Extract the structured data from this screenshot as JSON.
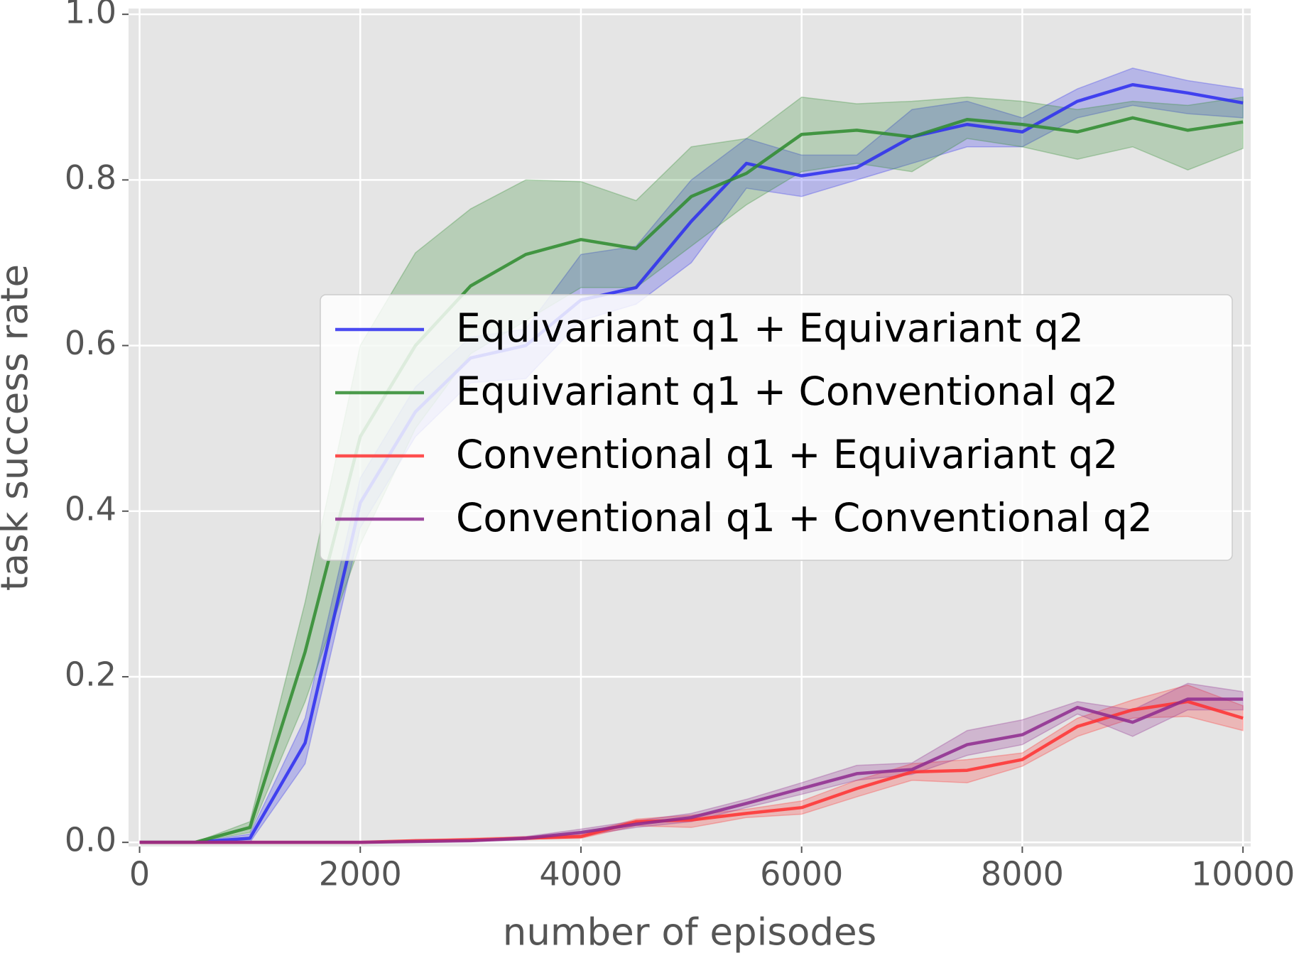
{
  "chart_data": {
    "type": "line",
    "xlabel": "number of episodes",
    "ylabel": "task success rate",
    "x": [
      0,
      500,
      1000,
      1500,
      2000,
      2500,
      3000,
      3500,
      4000,
      4500,
      5000,
      5500,
      6000,
      6500,
      7000,
      7500,
      8000,
      8500,
      9000,
      9500,
      10000
    ],
    "xlim": [
      -100,
      10070
    ],
    "ylim": [
      -0.005,
      1.007
    ],
    "xticks": [
      0,
      2000,
      4000,
      6000,
      8000,
      10000
    ],
    "yticks": [
      {
        "value": 0,
        "label": "0.0"
      },
      0.2,
      0.4,
      0.6,
      0.8,
      {
        "value": 1,
        "label": "1.0"
      }
    ],
    "grid": true,
    "legend": "center right",
    "series": [
      {
        "name": "Equivariant q1 + Equivariant q2",
        "color": "#2b2bf0",
        "values": [
          0,
          0,
          0.005,
          0.12,
          0.41,
          0.52,
          0.585,
          0.6,
          0.655,
          0.67,
          0.75,
          0.82,
          0.805,
          0.815,
          0.852,
          0.867,
          0.858,
          0.895,
          0.915,
          0.905,
          0.893
        ],
        "lower": [
          0,
          0,
          0,
          0.095,
          0.38,
          0.49,
          0.555,
          0.56,
          0.63,
          0.65,
          0.7,
          0.79,
          0.78,
          0.8,
          0.82,
          0.84,
          0.84,
          0.875,
          0.89,
          0.88,
          0.875
        ],
        "upper": [
          0,
          0,
          0.01,
          0.15,
          0.44,
          0.55,
          0.61,
          0.62,
          0.71,
          0.72,
          0.8,
          0.85,
          0.83,
          0.83,
          0.885,
          0.895,
          0.875,
          0.91,
          0.935,
          0.92,
          0.91
        ]
      },
      {
        "name": "Equivariant q1 + Conventional q2",
        "color": "#2e8b2e",
        "values": [
          0,
          0,
          0.018,
          0.23,
          0.49,
          0.6,
          0.672,
          0.71,
          0.728,
          0.717,
          0.78,
          0.808,
          0.855,
          0.86,
          0.852,
          0.873,
          0.867,
          0.858,
          0.875,
          0.86,
          0.87
        ],
        "lower": [
          0,
          0,
          0.012,
          0.17,
          0.36,
          0.5,
          0.59,
          0.63,
          0.67,
          0.67,
          0.72,
          0.77,
          0.81,
          0.82,
          0.81,
          0.85,
          0.84,
          0.825,
          0.84,
          0.812,
          0.838
        ],
        "upper": [
          0,
          0,
          0.025,
          0.29,
          0.6,
          0.712,
          0.765,
          0.8,
          0.798,
          0.775,
          0.84,
          0.85,
          0.9,
          0.892,
          0.895,
          0.9,
          0.895,
          0.885,
          0.895,
          0.89,
          0.9
        ]
      },
      {
        "name": "Conventional q1 + Equivariant q2",
        "color": "#ff3030",
        "values": [
          0,
          0,
          0,
          0,
          0,
          0.002,
          0.003,
          0.005,
          0.007,
          0.025,
          0.027,
          0.035,
          0.042,
          0.065,
          0.085,
          0.087,
          0.1,
          0.14,
          0.16,
          0.17,
          0.15
        ],
        "lower": [
          0,
          0,
          0,
          0,
          0,
          0.001,
          0.002,
          0.004,
          0.005,
          0.02,
          0.018,
          0.03,
          0.034,
          0.055,
          0.075,
          0.072,
          0.092,
          0.128,
          0.15,
          0.152,
          0.135
        ],
        "upper": [
          0,
          0,
          0,
          0,
          0,
          0.003,
          0.005,
          0.007,
          0.01,
          0.028,
          0.033,
          0.04,
          0.05,
          0.075,
          0.095,
          0.1,
          0.108,
          0.15,
          0.172,
          0.19,
          0.165
        ]
      },
      {
        "name": "Conventional q1 + Conventional q2",
        "color": "#8e2a8e",
        "values": [
          0,
          0,
          0,
          0,
          0,
          0.001,
          0.002,
          0.005,
          0.012,
          0.022,
          0.03,
          0.047,
          0.065,
          0.083,
          0.088,
          0.118,
          0.13,
          0.163,
          0.145,
          0.173,
          0.173
        ],
        "lower": [
          0,
          0,
          0,
          0,
          0,
          0,
          0.001,
          0.003,
          0.008,
          0.018,
          0.025,
          0.042,
          0.058,
          0.075,
          0.082,
          0.105,
          0.118,
          0.155,
          0.128,
          0.16,
          0.16
        ],
        "upper": [
          0,
          0,
          0,
          0,
          0,
          0.002,
          0.003,
          0.007,
          0.016,
          0.026,
          0.035,
          0.052,
          0.072,
          0.093,
          0.096,
          0.135,
          0.148,
          0.17,
          0.16,
          0.192,
          0.182
        ]
      }
    ]
  }
}
